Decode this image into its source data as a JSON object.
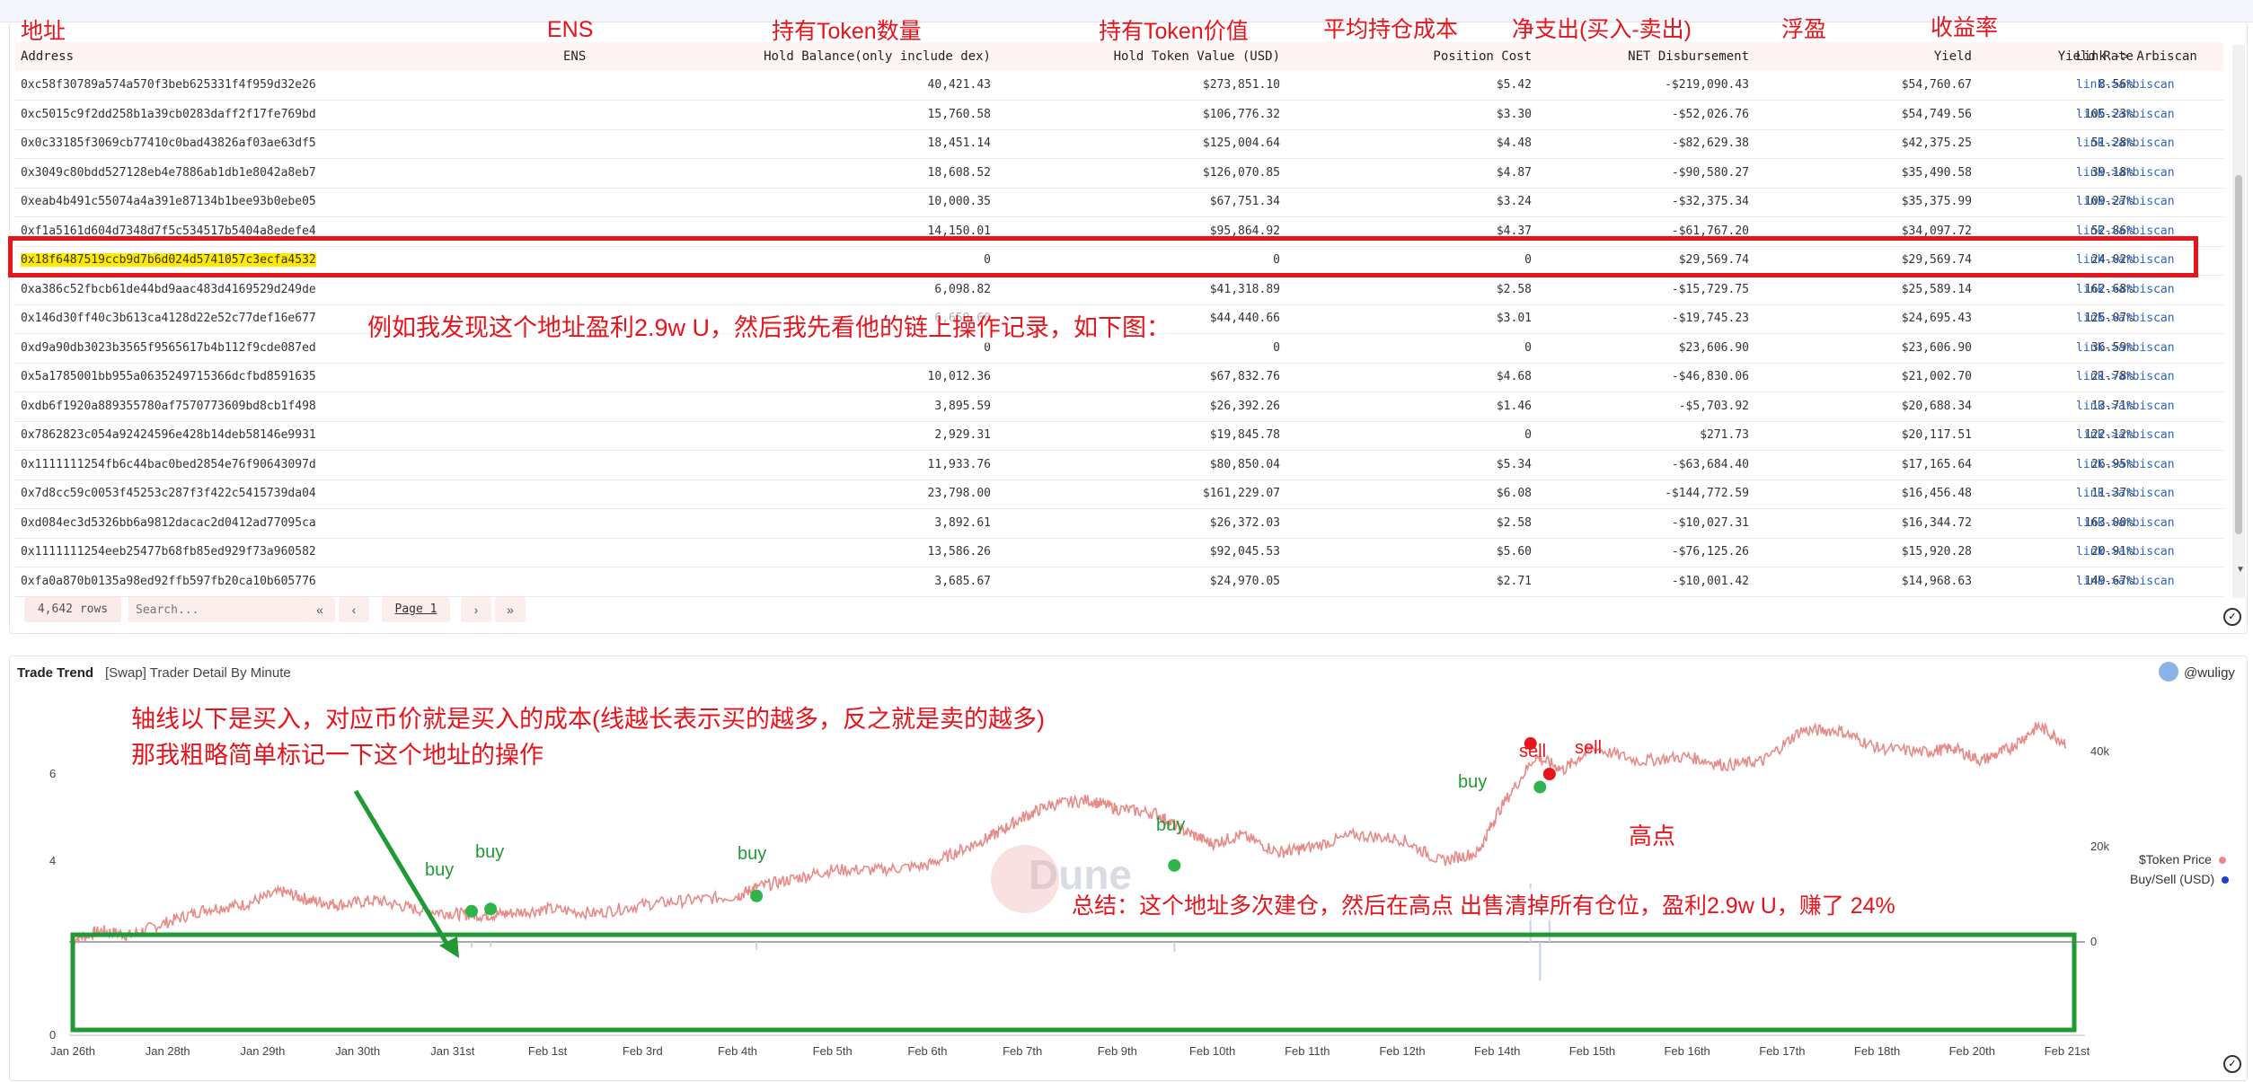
{
  "table": {
    "cn_labels": {
      "address": "地址",
      "ens": "ENS",
      "hold_balance": "持有Token数量",
      "hold_value": "持有Token价值",
      "position_cost": "平均持仓成本",
      "net_disbursement": "净支出(买入-卖出)",
      "yield": "浮盈",
      "yield_rate": "收益率"
    },
    "columns": {
      "address": "Address",
      "ens": "ENS",
      "hold_balance": "Hold Balance(only include dex)",
      "hold_value": "Hold Token Value (USD)",
      "position_cost": "Position Cost",
      "net_disbursement": "NET Disbursement",
      "yield": "Yield",
      "yield_rate": "Yield Rate",
      "link": "Link -> Arbiscan"
    },
    "rows": [
      {
        "address": "0xc58f30789a574a570f3beb625331f4f959d32e26",
        "balance": "40,421.43",
        "value": "$273,851.10",
        "cost": "$5.42",
        "net": "-$219,090.43",
        "yield": "$54,760.67",
        "rate": "8.56%",
        "link": "link->arbiscan"
      },
      {
        "address": "0xc5015c9f2dd258b1a39cb0283daff2f17fe769bd",
        "balance": "15,760.58",
        "value": "$106,776.32",
        "cost": "$3.30",
        "net": "-$52,026.76",
        "yield": "$54,749.56",
        "rate": "105.23%",
        "link": "link->arbiscan"
      },
      {
        "address": "0x0c33185f3069cb77410c0bad43826af03ae63df5",
        "balance": "18,451.14",
        "value": "$125,004.64",
        "cost": "$4.48",
        "net": "-$82,629.38",
        "yield": "$42,375.25",
        "rate": "51.28%",
        "link": "link->arbiscan"
      },
      {
        "address": "0x3049c80bdd527128eb4e7886ab1db1e8042a8eb7",
        "balance": "18,608.52",
        "value": "$126,070.85",
        "cost": "$4.87",
        "net": "-$90,580.27",
        "yield": "$35,490.58",
        "rate": "39.18%",
        "link": "link->arbiscan"
      },
      {
        "address": "0xeab4b491c55074a4a391e87134b1bee93b0ebe05",
        "balance": "10,000.35",
        "value": "$67,751.34",
        "cost": "$3.24",
        "net": "-$32,375.34",
        "yield": "$35,375.99",
        "rate": "109.27%",
        "link": "link->arbiscan"
      },
      {
        "address": "0xf1a5161d604d7348d7f5c534517b5404a8edefe4",
        "balance": "14,150.01",
        "value": "$95,864.92",
        "cost": "$4.37",
        "net": "-$61,767.20",
        "yield": "$34,097.72",
        "rate": "52.86%",
        "link": "link->arbiscan"
      },
      {
        "address": "0x18f6487519ccb9d7b6d024d5741057c3ecfa4532",
        "balance": "0",
        "value": "0",
        "cost": "0",
        "net": "$29,569.74",
        "yield": "$29,569.74",
        "rate": "24.02%",
        "link": "link->arbiscan"
      },
      {
        "address": "0xa386c52fbcb61de44bd9aac483d4169529d249de",
        "balance": "6,098.82",
        "value": "$41,318.89",
        "cost": "$2.58",
        "net": "-$15,729.75",
        "yield": "$25,589.14",
        "rate": "162.68%",
        "link": "link->arbiscan"
      },
      {
        "address": "0x146d30ff40c3b613ca4128d22e52c77def16e677",
        "balance": "6,659.60",
        "value": "$44,440.66",
        "cost": "$3.01",
        "net": "-$19,745.23",
        "yield": "$24,695.43",
        "rate": "125.07%",
        "link": "link->arbiscan"
      },
      {
        "address": "0xd9a90db3023b3565f9565617b4b112f9cde087ed",
        "balance": "0",
        "value": "0",
        "cost": "0",
        "net": "$23,606.90",
        "yield": "$23,606.90",
        "rate": "36.59%",
        "link": "link->arbiscan"
      },
      {
        "address": "0x5a1785001bb955a0635249715366dcfbd8591635",
        "balance": "10,012.36",
        "value": "$67,832.76",
        "cost": "$4.68",
        "net": "-$46,830.06",
        "yield": "$21,002.70",
        "rate": "21.78%",
        "link": "link->arbiscan"
      },
      {
        "address": "0xdb6f1920a889355780af7570773609bd8cb1f498",
        "balance": "3,895.59",
        "value": "$26,392.26",
        "cost": "$1.46",
        "net": "-$5,703.92",
        "yield": "$20,688.34",
        "rate": "13.71%",
        "link": "link->arbiscan"
      },
      {
        "address": "0x7862823c054a92424596e428b14deb58146e9931",
        "balance": "2,929.31",
        "value": "$19,845.78",
        "cost": "0",
        "net": "$271.73",
        "yield": "$20,117.51",
        "rate": "122.12%",
        "link": "link->arbiscan"
      },
      {
        "address": "0x1111111254fb6c44bac0bed2854e76f90643097d",
        "balance": "11,933.76",
        "value": "$80,850.04",
        "cost": "$5.34",
        "net": "-$63,684.40",
        "yield": "$17,165.64",
        "rate": "26.95%",
        "link": "link->arbiscan"
      },
      {
        "address": "0x7d8cc59c0053f45253c287f3f422c5415739da04",
        "balance": "23,798.00",
        "value": "$161,229.07",
        "cost": "$6.08",
        "net": "-$144,772.59",
        "yield": "$16,456.48",
        "rate": "11.37%",
        "link": "link->arbiscan"
      },
      {
        "address": "0xd084ec3d5326bb6a9812dacac2d0412ad77095ca",
        "balance": "3,892.61",
        "value": "$26,372.03",
        "cost": "$2.58",
        "net": "-$10,027.31",
        "yield": "$16,344.72",
        "rate": "163.00%",
        "link": "link->arbiscan"
      },
      {
        "address": "0x1111111254eeb25477b68fb85ed929f73a960582",
        "balance": "13,586.26",
        "value": "$92,045.53",
        "cost": "$5.60",
        "net": "-$76,125.26",
        "yield": "$15,920.28",
        "rate": "20.91%",
        "link": "link->arbiscan"
      },
      {
        "address": "0xfa0a870b0135a98ed92ffb597fb20ca10b605776",
        "balance": "3,685.67",
        "value": "$24,970.05",
        "cost": "$2.71",
        "net": "-$10,001.42",
        "yield": "$14,968.63",
        "rate": "149.67%",
        "link": "link->arbiscan"
      }
    ],
    "annotation": "例如我发现这个地址盈利2.9w U，然后我先看他的链上操作记录，如下图：",
    "footer": {
      "rows": "4,642 rows",
      "search_placeholder": "Search...",
      "page": "Page 1"
    }
  },
  "chart_panel": {
    "title": "Trade Trend",
    "subtitle": "[Swap] Trader Detail By Minute",
    "user": "@wuligy",
    "watermark": "Dune",
    "annotations": {
      "axis_note_line1": "轴线以下是买入，对应币价就是买入的成本(线越长表示买的越多，反之就是卖的越多)",
      "axis_note_line2": "那我粗略简单标记一下这个地址的操作",
      "summary": "总结：这个地址多次建仓，然后在高点 出售清掉所有仓位，盈利2.9w U，赚了 24%",
      "peak": "高点",
      "buy": "buy",
      "sell": "sell"
    }
  },
  "chart_data": {
    "type": "line",
    "x_ticks": [
      "Jan 26th",
      "Jan 28th",
      "Jan 29th",
      "Jan 30th",
      "Jan 31st",
      "Feb 1st",
      "Feb 3rd",
      "Feb 4th",
      "Feb 5th",
      "Feb 6th",
      "Feb 7th",
      "Feb 9th",
      "Feb 10th",
      "Feb 11th",
      "Feb 12th",
      "Feb 14th",
      "Feb 15th",
      "Feb 16th",
      "Feb 17th",
      "Feb 18th",
      "Feb 20th",
      "Feb 21st"
    ],
    "y_left_ticks": [
      "0",
      "4",
      "6"
    ],
    "y_right_ticks": [
      "20k",
      "40k",
      "0"
    ],
    "legend": [
      {
        "name": "$Token Price",
        "color": "#e88a87"
      },
      {
        "name": "Buy/Sell (USD)",
        "color": "#1b3fd6"
      }
    ],
    "price_color": "#e88a87",
    "price_series": [
      [
        0,
        2.2
      ],
      [
        0.3,
        2.4
      ],
      [
        0.6,
        2.3
      ],
      [
        1,
        2.6
      ],
      [
        1.4,
        2.9
      ],
      [
        1.8,
        3.0
      ],
      [
        2.2,
        3.3
      ],
      [
        2.5,
        3.1
      ],
      [
        2.8,
        3.0
      ],
      [
        3.2,
        3.1
      ],
      [
        3.6,
        2.9
      ],
      [
        4,
        2.8
      ],
      [
        4.3,
        2.75
      ],
      [
        4.6,
        2.8
      ],
      [
        5,
        2.9
      ],
      [
        5.5,
        2.8
      ],
      [
        6,
        3.0
      ],
      [
        6.5,
        3.1
      ],
      [
        7,
        3.2
      ],
      [
        7.2,
        3.4
      ],
      [
        7.6,
        3.6
      ],
      [
        8,
        3.8
      ],
      [
        8.5,
        3.8
      ],
      [
        9,
        3.9
      ],
      [
        9.4,
        4.3
      ],
      [
        9.7,
        4.6
      ],
      [
        10,
        5.0
      ],
      [
        10.3,
        5.3
      ],
      [
        10.7,
        5.4
      ],
      [
        11,
        5.2
      ],
      [
        11.4,
        5.1
      ],
      [
        11.7,
        4.7
      ],
      [
        12,
        4.4
      ],
      [
        12.3,
        4.6
      ],
      [
        12.7,
        4.2
      ],
      [
        13,
        4.3
      ],
      [
        13.5,
        4.6
      ],
      [
        14,
        4.5
      ],
      [
        14.4,
        4.0
      ],
      [
        14.8,
        4.2
      ],
      [
        15,
        5.1
      ],
      [
        15.4,
        6.4
      ],
      [
        15.7,
        6.1
      ],
      [
        16,
        6.6
      ],
      [
        16.5,
        6.3
      ],
      [
        17,
        6.4
      ],
      [
        17.4,
        6.2
      ],
      [
        17.8,
        6.3
      ],
      [
        18.2,
        7.0
      ],
      [
        18.6,
        7.0
      ],
      [
        19,
        6.6
      ],
      [
        19.5,
        6.5
      ],
      [
        19.8,
        6.6
      ],
      [
        20.1,
        6.3
      ],
      [
        20.4,
        6.6
      ],
      [
        20.7,
        7.1
      ],
      [
        21,
        6.7
      ]
    ],
    "trades": [
      {
        "label": "buy",
        "x": 4.2,
        "price": 2.85,
        "usd": -300
      },
      {
        "label": "buy",
        "x": 4.4,
        "price": 2.9,
        "usd": -250
      },
      {
        "label": "buy",
        "x": 7.2,
        "price": 3.2,
        "usd": -400
      },
      {
        "label": "buy",
        "x": 11.6,
        "price": 3.9,
        "usd": -500
      },
      {
        "label": "buy",
        "x": 15.45,
        "price": 5.7,
        "usd": -2000
      },
      {
        "label": "sell",
        "x": 15.35,
        "price": 6.7,
        "usd": 3000
      },
      {
        "label": "sell",
        "x": 15.55,
        "price": 6.0,
        "usd": 2500
      }
    ]
  }
}
